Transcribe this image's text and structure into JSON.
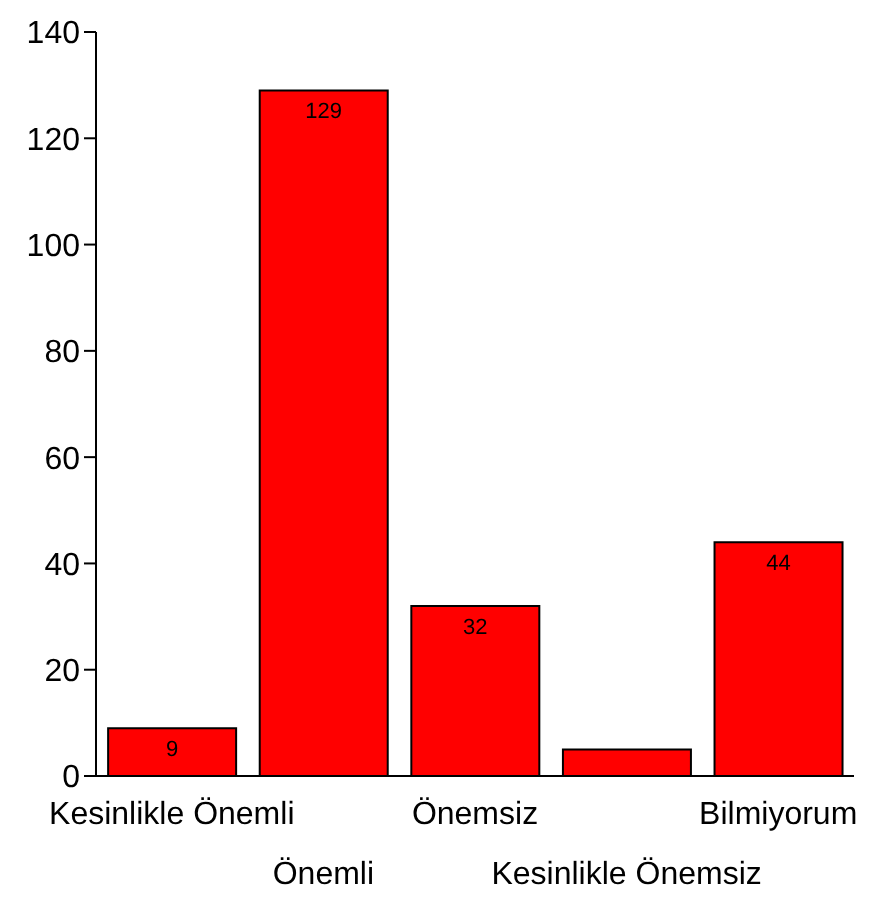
{
  "chart_data": {
    "type": "bar",
    "categories": [
      "Kesinlikle Önemli",
      "Önemli",
      "Önemsiz",
      "Kesinlikle Önemsiz",
      "Bilmiyorum"
    ],
    "values": [
      9,
      129,
      32,
      5,
      44
    ],
    "value_labels": [
      "9",
      "129",
      "32",
      null,
      "44"
    ],
    "color": "#ff0000",
    "ylim": [
      0,
      140
    ],
    "yticks": [
      0,
      20,
      40,
      60,
      80,
      100,
      120,
      140
    ],
    "grid": false
  }
}
